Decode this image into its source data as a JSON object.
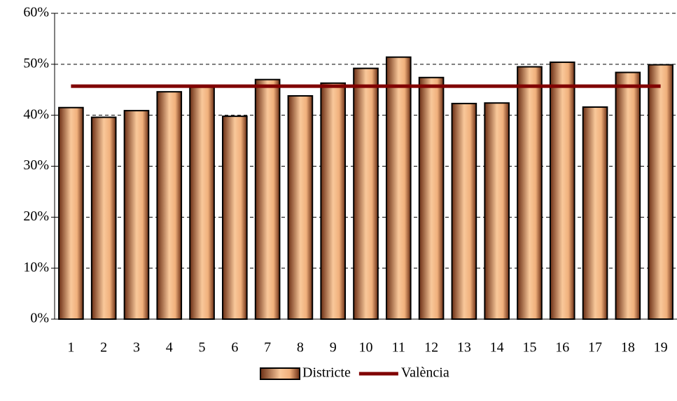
{
  "chart_data": {
    "type": "bar",
    "categories": [
      "1",
      "2",
      "3",
      "4",
      "5",
      "6",
      "7",
      "8",
      "9",
      "10",
      "11",
      "12",
      "13",
      "14",
      "15",
      "16",
      "17",
      "18",
      "19"
    ],
    "series": [
      {
        "name": "Districte",
        "mark": "bar",
        "color": "#f5c08e",
        "values": [
          41.5,
          39.6,
          40.9,
          44.6,
          45.5,
          39.8,
          47.0,
          43.8,
          46.3,
          49.2,
          51.4,
          47.4,
          42.3,
          42.4,
          49.5,
          50.4,
          41.6,
          48.4,
          49.9
        ]
      },
      {
        "name": "València",
        "mark": "line",
        "color": "#800000",
        "values": [
          45.7,
          45.7,
          45.7,
          45.7,
          45.7,
          45.7,
          45.7,
          45.7,
          45.7,
          45.7,
          45.7,
          45.7,
          45.7,
          45.7,
          45.7,
          45.7,
          45.7,
          45.7,
          45.7
        ]
      }
    ],
    "ylim": [
      0,
      60
    ],
    "yticks": [
      {
        "value": 0,
        "label": "0%"
      },
      {
        "value": 10,
        "label": "10%"
      },
      {
        "value": 20,
        "label": "20%"
      },
      {
        "value": 30,
        "label": "30%"
      },
      {
        "value": 40,
        "label": "40%"
      },
      {
        "value": 50,
        "label": "50%"
      },
      {
        "value": 60,
        "label": "60%"
      }
    ],
    "grid": true,
    "legend": "bottom"
  }
}
